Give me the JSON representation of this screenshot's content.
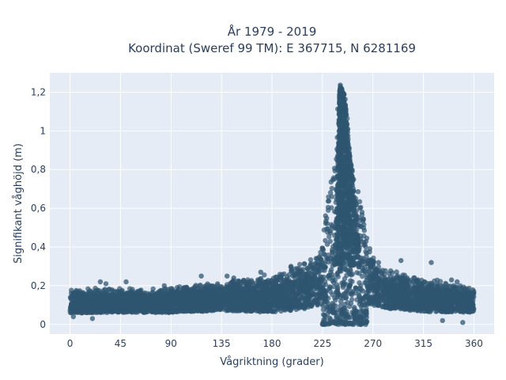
{
  "chart_data": {
    "type": "scatter",
    "title": "År 1979 - 2019",
    "subtitle": "Koordinat (Sweref 99 TM): E 367715, N 6281169",
    "xlabel": "Vågriktning (grader)",
    "ylabel": "Signifikant våghöjd (m)",
    "xlim": [
      -18,
      378
    ],
    "ylim": [
      -0.05,
      1.3
    ],
    "xticks": [
      0,
      45,
      90,
      135,
      180,
      225,
      270,
      315,
      360
    ],
    "xtick_labels": [
      "0",
      "45",
      "90",
      "135",
      "180",
      "225",
      "270",
      "315",
      "360"
    ],
    "yticks": [
      0,
      0.2,
      0.4,
      0.6,
      0.8,
      1.0,
      1.2
    ],
    "ytick_labels": [
      "0",
      "0,2",
      "0,4",
      "0,6",
      "0,8",
      "1",
      "1,2"
    ],
    "grid": true,
    "background": "#e5ecf6",
    "marker_color": "#2f5570",
    "envelope": [
      {
        "x": 0,
        "low": 0.02,
        "high": 0.19
      },
      {
        "x": 45,
        "low": 0.02,
        "high": 0.2
      },
      {
        "x": 90,
        "low": 0.02,
        "high": 0.2
      },
      {
        "x": 135,
        "low": 0.02,
        "high": 0.24
      },
      {
        "x": 180,
        "low": 0.0,
        "high": 0.28
      },
      {
        "x": 210,
        "low": 0.0,
        "high": 0.35
      },
      {
        "x": 225,
        "low": 0.0,
        "high": 0.46
      },
      {
        "x": 235,
        "low": 0.0,
        "high": 0.85
      },
      {
        "x": 240,
        "low": 0.0,
        "high": 1.25
      },
      {
        "x": 245,
        "low": 0.0,
        "high": 1.18
      },
      {
        "x": 250,
        "low": 0.0,
        "high": 0.95
      },
      {
        "x": 255,
        "low": 0.0,
        "high": 0.75
      },
      {
        "x": 265,
        "low": 0.0,
        "high": 0.45
      },
      {
        "x": 280,
        "low": 0.02,
        "high": 0.3
      },
      {
        "x": 315,
        "low": 0.01,
        "high": 0.26
      },
      {
        "x": 360,
        "low": 0.02,
        "high": 0.2
      }
    ],
    "outliers": [
      {
        "x": 27,
        "y": 0.22
      },
      {
        "x": 32,
        "y": 0.21
      },
      {
        "x": 50,
        "y": 0.22
      },
      {
        "x": 84,
        "y": 0.2
      },
      {
        "x": 117,
        "y": 0.25
      },
      {
        "x": 140,
        "y": 0.25
      },
      {
        "x": 146,
        "y": 0.24
      },
      {
        "x": 170,
        "y": 0.27
      },
      {
        "x": 197,
        "y": 0.3
      },
      {
        "x": 268,
        "y": 0.32
      },
      {
        "x": 275,
        "y": 0.32
      },
      {
        "x": 295,
        "y": 0.33
      },
      {
        "x": 322,
        "y": 0.32
      },
      {
        "x": 340,
        "y": 0.23
      },
      {
        "x": 345,
        "y": 0.22
      },
      {
        "x": 3,
        "y": 0.04
      },
      {
        "x": 20,
        "y": 0.03
      },
      {
        "x": 332,
        "y": 0.02
      },
      {
        "x": 350,
        "y": 0.01
      }
    ]
  }
}
